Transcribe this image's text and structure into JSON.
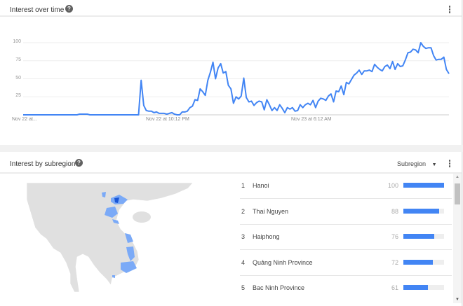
{
  "interest_over_time": {
    "title": "Interest over time",
    "help_icon": "question-circle-icon",
    "menu_icon": "more-vert-icon",
    "chart_data": {
      "type": "line",
      "title": "",
      "xlabel": "",
      "ylabel": "",
      "ylim": [
        0,
        100
      ],
      "yticks": [
        "100",
        "75",
        "50",
        "25"
      ],
      "xticks": [
        "Nov 22 at...",
        "Nov 22 at 10:12 PM",
        "Nov 23 at 6:12 AM"
      ],
      "grid": true,
      "color": "#4285f4",
      "values": [
        0,
        0,
        0,
        0,
        0,
        0,
        0,
        0,
        0,
        0,
        0,
        0,
        0,
        0,
        0,
        0,
        0,
        0,
        0,
        0,
        0,
        0,
        1,
        1,
        1,
        1,
        0,
        0,
        0,
        0,
        0,
        0,
        0,
        0,
        0,
        0,
        0,
        0,
        0,
        0,
        0,
        0,
        0,
        0,
        0,
        0,
        48,
        13,
        6,
        5,
        5,
        3,
        4,
        2,
        2,
        2,
        1,
        2,
        3,
        1,
        0,
        0,
        4,
        4,
        5,
        10,
        12,
        21,
        20,
        36,
        32,
        27,
        48,
        59,
        73,
        50,
        65,
        71,
        58,
        60,
        41,
        36,
        16,
        25,
        22,
        26,
        51,
        24,
        18,
        19,
        13,
        17,
        19,
        18,
        7,
        21,
        14,
        6,
        10,
        6,
        14,
        9,
        3,
        10,
        8,
        10,
        5,
        6,
        14,
        10,
        14,
        16,
        14,
        20,
        10,
        19,
        23,
        22,
        20,
        26,
        29,
        18,
        33,
        32,
        40,
        28,
        45,
        43,
        49,
        55,
        58,
        62,
        56,
        61,
        61,
        62,
        60,
        70,
        66,
        63,
        61,
        67,
        69,
        64,
        74,
        63,
        71,
        67,
        68,
        76,
        86,
        87,
        91,
        90,
        86,
        100,
        95,
        92,
        93,
        93,
        82,
        76,
        77,
        77,
        80,
        63,
        57
      ]
    }
  },
  "interest_by_subregion": {
    "title": "Interest by subregion",
    "help_icon": "question-circle-icon",
    "menu_icon": "more-vert-icon",
    "dropdown": {
      "selected": "Subregion",
      "icon": "arrow-drop-down-icon"
    },
    "map": {
      "highlight_color": "#4285f4",
      "land_color": "#e0e0e0"
    },
    "rows": [
      {
        "rank": "1",
        "name": "Hanoi",
        "value": 100
      },
      {
        "rank": "2",
        "name": "Thai Nguyen",
        "value": 88
      },
      {
        "rank": "3",
        "name": "Haiphong",
        "value": 76
      },
      {
        "rank": "4",
        "name": "Quảng Ninh Province",
        "value": 72
      },
      {
        "rank": "5",
        "name": "Bac Ninh Province",
        "value": 61
      }
    ]
  }
}
